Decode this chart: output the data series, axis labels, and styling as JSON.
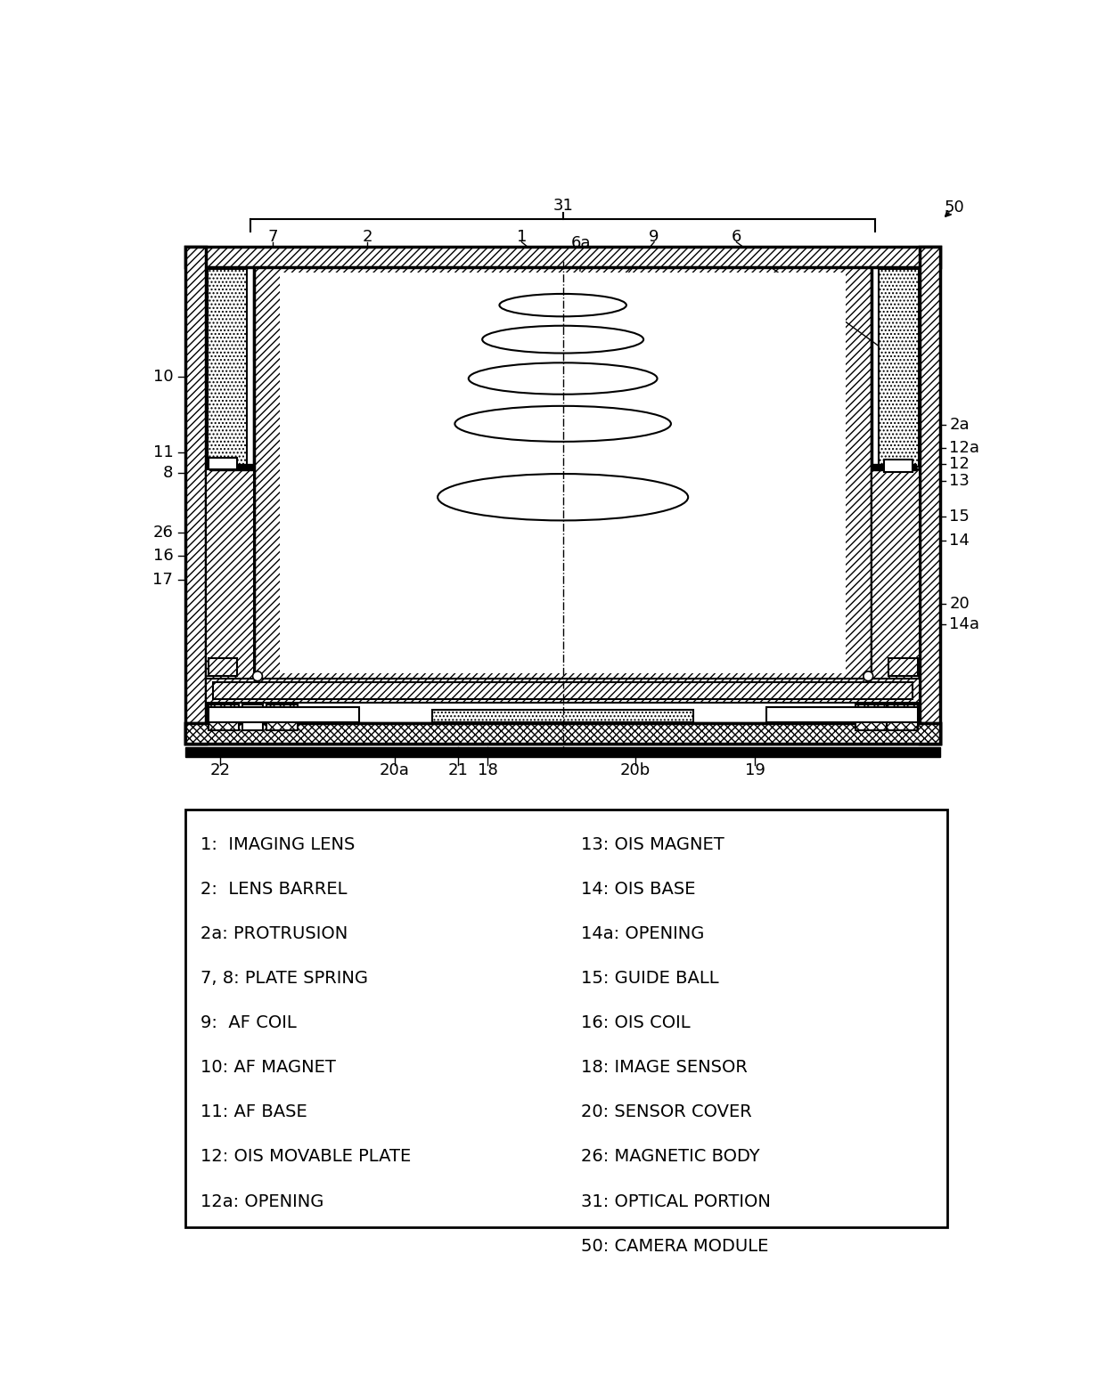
{
  "legend_left": [
    "1:  IMAGING LENS",
    "2:  LENS BARREL",
    "2a: PROTRUSION",
    "7, 8: PLATE SPRING",
    "9:  AF COIL",
    "10: AF MAGNET",
    "11: AF BASE",
    "12: OIS MOVABLE PLATE",
    "12a: OPENING"
  ],
  "legend_right": [
    "13: OIS MAGNET",
    "14: OIS BASE",
    "14a: OPENING",
    "15: GUIDE BALL",
    "16: OIS COIL",
    "18: IMAGE SENSOR",
    "20: SENSOR COVER",
    "26: MAGNETIC BODY",
    "31: OPTICAL PORTION",
    "50: CAMERA MODULE"
  ],
  "bg_color": "#ffffff",
  "line_color": "#000000"
}
